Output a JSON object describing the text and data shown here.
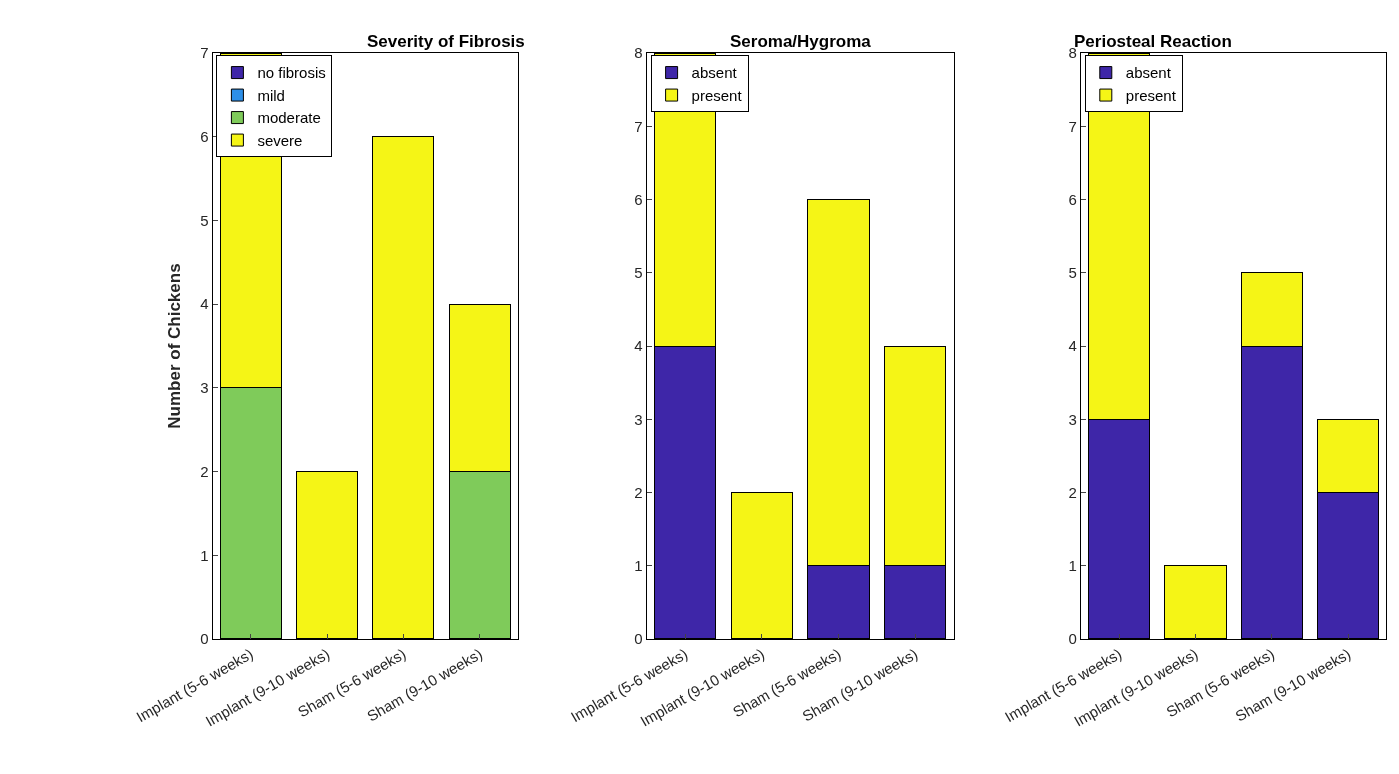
{
  "chart_data": [
    {
      "type": "bar",
      "title": "Severity of Fibrosis",
      "ylabel": "Number of Chickens",
      "stacked": true,
      "legend": "top left",
      "categories": [
        "Implant (5-6 weeks)",
        "Implant (9-10 weeks)",
        "Sham (5-6 weeks)",
        "Sham (9-10 weeks)"
      ],
      "series": [
        {
          "name": "no fibrosis",
          "color": "#3e26a8",
          "values": [
            0,
            0,
            0,
            0
          ]
        },
        {
          "name": "mild",
          "color": "#2d8fe8",
          "values": [
            0,
            0,
            0,
            0
          ]
        },
        {
          "name": "moderate",
          "color": "#7fcb5a",
          "values": [
            3,
            0,
            0,
            2
          ]
        },
        {
          "name": "severe",
          "color": "#f5f516",
          "values": [
            4,
            2,
            6,
            2
          ]
        }
      ],
      "ylim": [
        0,
        7
      ],
      "yticks": [
        0,
        1,
        2,
        3,
        4,
        5,
        6,
        7
      ]
    },
    {
      "type": "bar",
      "title": "Seroma/Hygroma",
      "stacked": true,
      "legend": "top left",
      "categories": [
        "Implant (5-6 weeks)",
        "Implant (9-10 weeks)",
        "Sham (5-6 weeks)",
        "Sham (9-10 weeks)"
      ],
      "series": [
        {
          "name": "absent",
          "color": "#3e26a8",
          "values": [
            4,
            0,
            1,
            1
          ]
        },
        {
          "name": "present",
          "color": "#f5f516",
          "values": [
            4,
            2,
            5,
            3
          ]
        }
      ],
      "ylim": [
        0,
        8
      ],
      "yticks": [
        0,
        1,
        2,
        3,
        4,
        5,
        6,
        7,
        8
      ]
    },
    {
      "type": "bar",
      "title": "Periosteal Reaction",
      "stacked": true,
      "legend": "top left",
      "categories": [
        "Implant (5-6 weeks)",
        "Implant (9-10 weeks)",
        "Sham (5-6 weeks)",
        "Sham (9-10 weeks)"
      ],
      "series": [
        {
          "name": "absent",
          "color": "#3e26a8",
          "values": [
            3,
            0,
            4,
            2
          ]
        },
        {
          "name": "present",
          "color": "#f5f516",
          "values": [
            5,
            1,
            1,
            1
          ]
        }
      ],
      "ylim": [
        0,
        8
      ],
      "yticks": [
        0,
        1,
        2,
        3,
        4,
        5,
        6,
        7,
        8
      ]
    }
  ]
}
